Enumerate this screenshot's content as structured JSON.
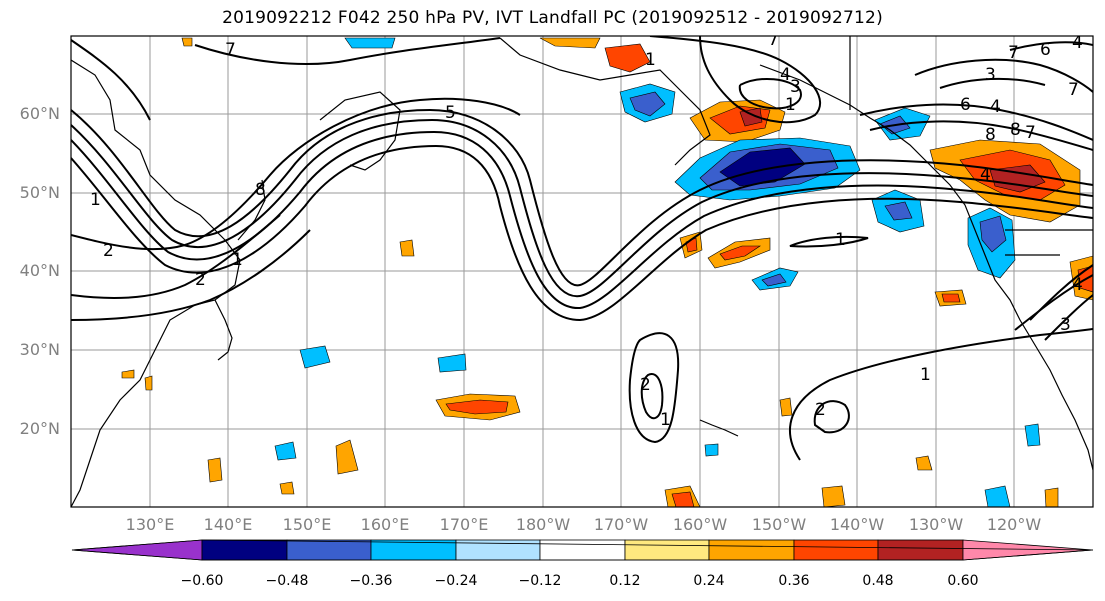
{
  "title": "2019092212 F042 250 hPa PV, IVT Landfall PC (2019092512 - 2019092712)",
  "lat_labels": [
    "60°N",
    "50°N",
    "40°N",
    "30°N",
    "20°N"
  ],
  "lon_labels": [
    "130°E",
    "140°E",
    "150°E",
    "160°E",
    "170°E",
    "180°W",
    "170°W",
    "160°W",
    "150°W",
    "140°W",
    "130°W",
    "120°W"
  ],
  "colorbar": {
    "ticks": [
      "−0.60",
      "−0.48",
      "−0.36",
      "−0.24",
      "−0.12",
      "0.12",
      "0.24",
      "0.36",
      "0.48",
      "0.60"
    ],
    "colors": [
      "#9932cc",
      "#000080",
      "#3a5fcd",
      "#00bfff",
      "#b0e2ff",
      "#ffffff",
      "#ffe97f",
      "#ffa500",
      "#ff4500",
      "#b22222",
      "#ff88aa"
    ]
  },
  "contour_labels": [
    "1",
    "2",
    "3",
    "4",
    "5",
    "6",
    "7",
    "8",
    "1",
    "2",
    "1",
    "1",
    "2",
    "3",
    "4",
    "5",
    "6",
    "7",
    "8",
    "1",
    "1",
    "2"
  ]
}
